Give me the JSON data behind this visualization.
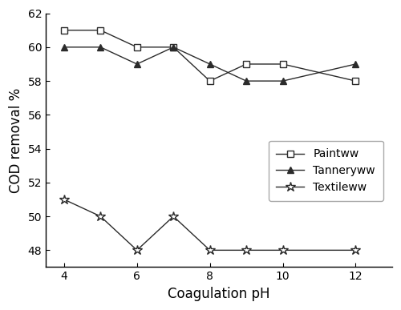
{
  "x": [
    4,
    5,
    6,
    7,
    8,
    9,
    10,
    12
  ],
  "paintww": [
    61.0,
    61.0,
    60.0,
    60.0,
    58.0,
    59.0,
    59.0,
    58.0
  ],
  "tanneryww": [
    60.0,
    60.0,
    59.0,
    60.0,
    59.0,
    58.0,
    58.0,
    59.0
  ],
  "textileww": [
    51.0,
    50.0,
    48.0,
    50.0,
    48.0,
    48.0,
    48.0,
    48.0
  ],
  "xlabel": "Coagulation pH",
  "ylabel": "COD removal %",
  "ylim": [
    47,
    62
  ],
  "xlim": [
    3.5,
    13
  ],
  "yticks": [
    48,
    50,
    52,
    54,
    56,
    58,
    60,
    62
  ],
  "xticks": [
    4,
    6,
    8,
    10,
    12
  ],
  "legend_labels": [
    "Paintww",
    "Tanneryww",
    "Textileww"
  ],
  "line_color": "#2b2b2b",
  "background_color": "#ffffff"
}
